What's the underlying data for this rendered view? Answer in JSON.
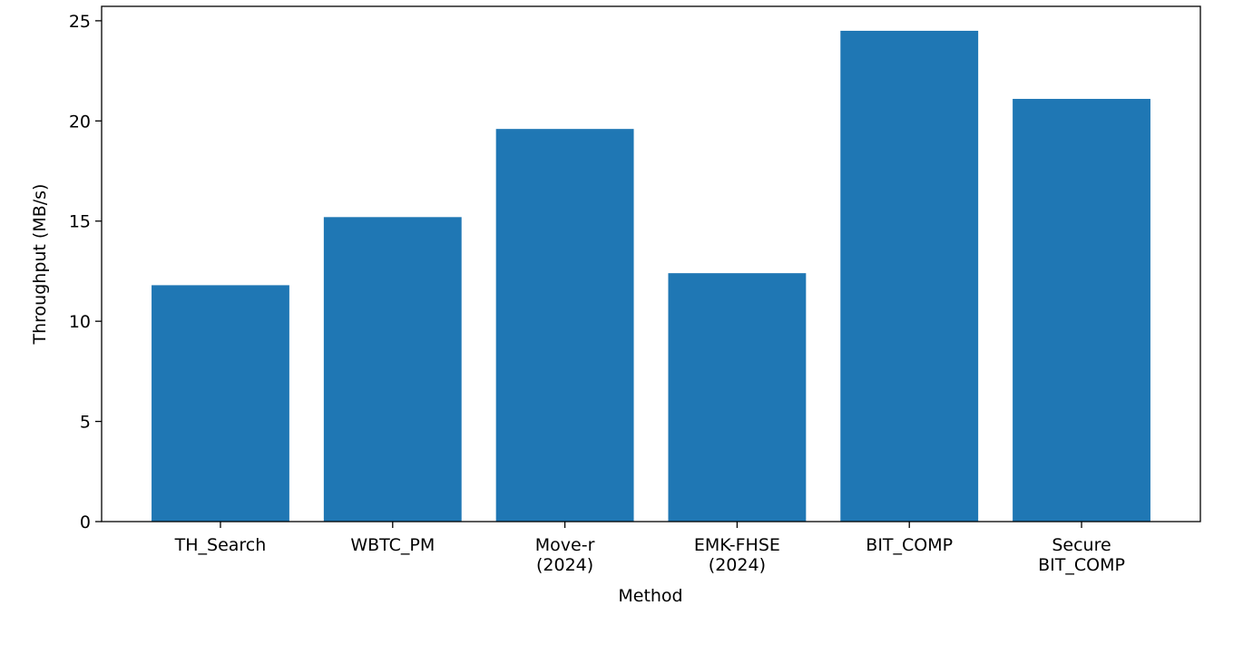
{
  "chart_data": {
    "type": "bar",
    "x_label": "Method",
    "y_label": "Throughput (MB/s)",
    "categories": [
      "TH_Search",
      "WBTC_PM",
      "Move-r\n(2024)",
      "EMK-FHSE\n(2024)",
      "BIT_COMP",
      "Secure\nBIT_COMP"
    ],
    "values": [
      11.8,
      15.2,
      19.6,
      12.4,
      24.5,
      21.1
    ],
    "color": "#1f77b4",
    "ylim": [
      0,
      25.72
    ],
    "yticks": [
      0,
      5,
      10,
      15,
      20,
      25
    ],
    "grid": false
  }
}
